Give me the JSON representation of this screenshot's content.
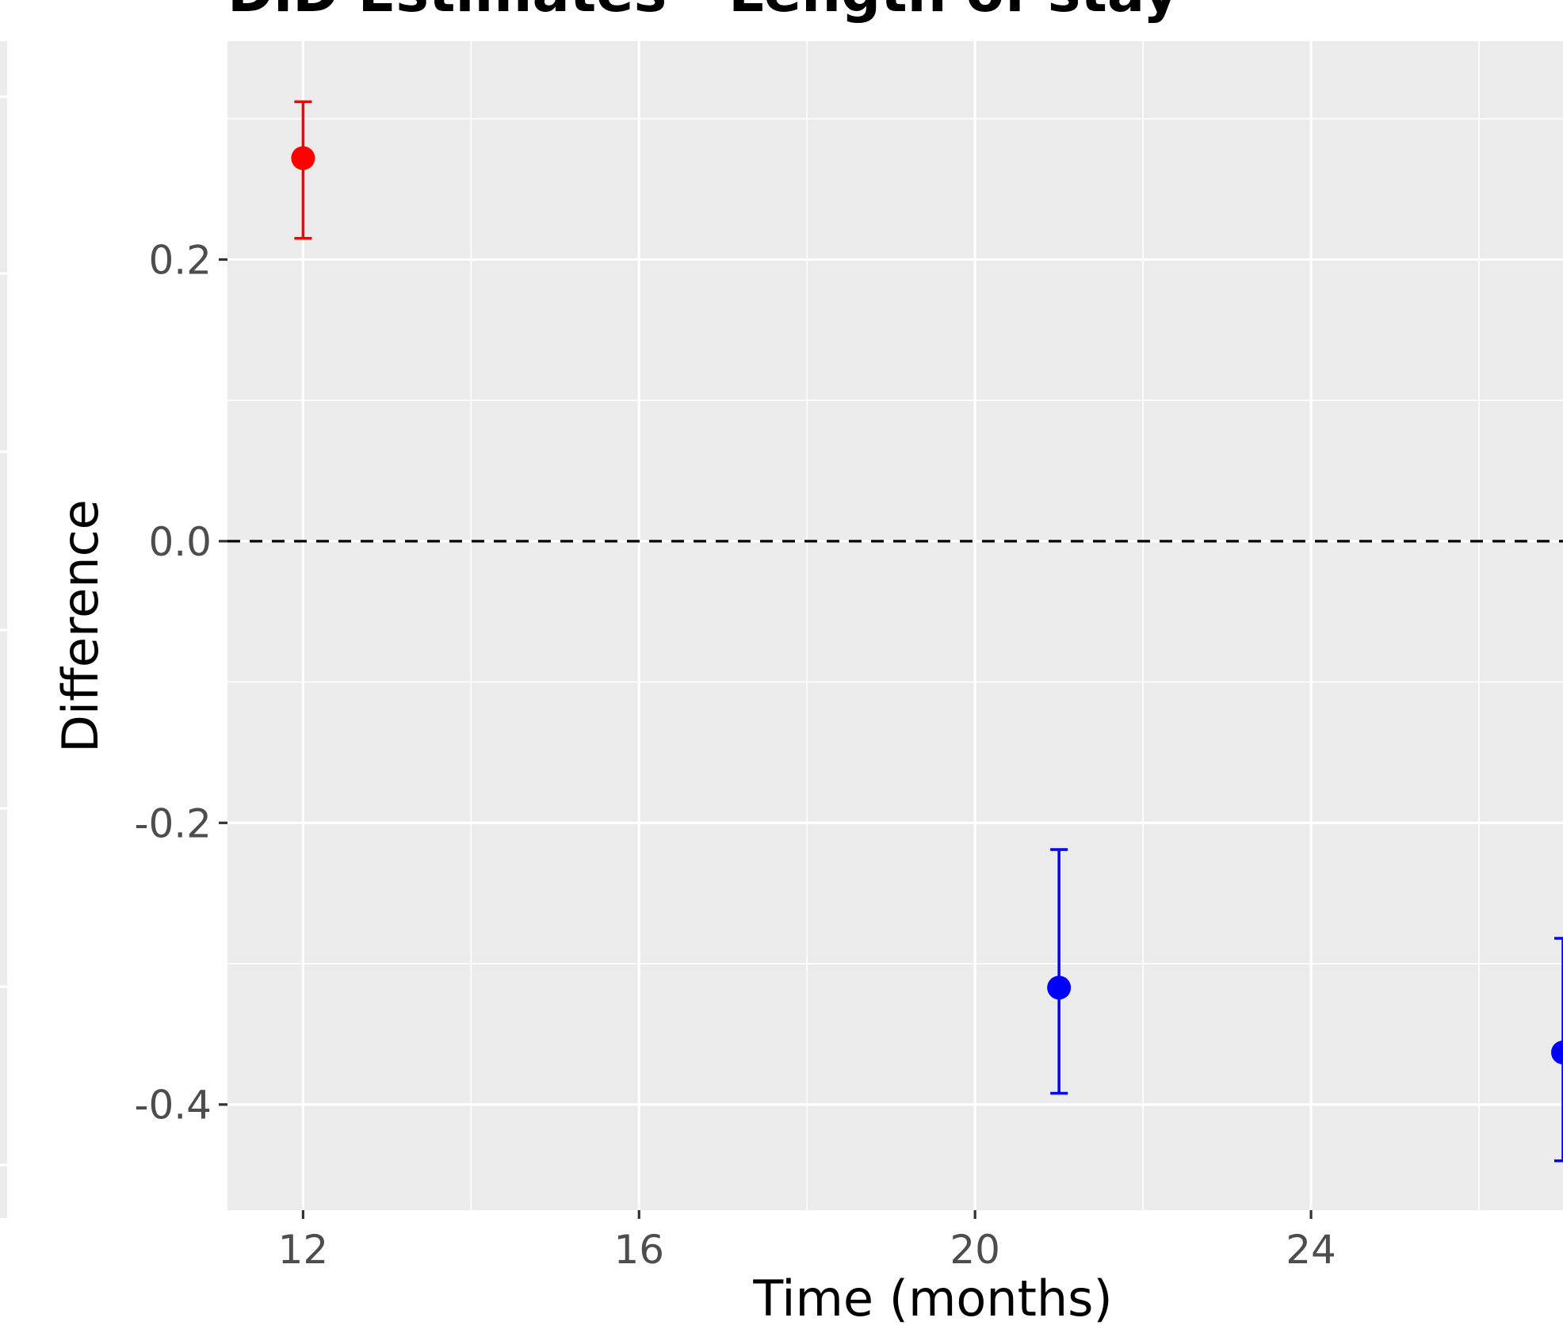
{
  "chart_data": {
    "type": "scatter",
    "title": "DiD Estimates - Length of stay",
    "xlabel": "Time (months)",
    "ylabel": "Difference",
    "xlim": [
      11.1,
      27.0
    ],
    "ylim": [
      -0.475,
      0.355
    ],
    "x_ticks": [
      {
        "value": 12,
        "label": "12"
      },
      {
        "value": 16,
        "label": "16"
      },
      {
        "value": 20,
        "label": "20"
      },
      {
        "value": 24,
        "label": "24"
      }
    ],
    "x_minor": [
      14,
      18,
      22,
      26
    ],
    "y_ticks": [
      {
        "value": 0.2,
        "label": "0.2"
      },
      {
        "value": 0.0,
        "label": "0.0"
      },
      {
        "value": -0.2,
        "label": "-0.2"
      },
      {
        "value": -0.4,
        "label": "-0.4"
      }
    ],
    "y_minor": [
      0.3,
      0.1,
      -0.1,
      -0.3
    ],
    "reference_line": {
      "y": 0.0,
      "style": "dashed",
      "color": "#000000"
    },
    "grid": true,
    "background": "#ebebeb",
    "points": [
      {
        "x": 12,
        "y": 0.272,
        "ymin": 0.215,
        "ymax": 0.312,
        "color": "#ff0000"
      },
      {
        "x": 21,
        "y": -0.317,
        "ymin": -0.392,
        "ymax": -0.219,
        "color": "#0000ff"
      },
      {
        "x": 27,
        "y": -0.363,
        "ymin": -0.44,
        "ymax": -0.282,
        "color": "#0000ff"
      }
    ]
  }
}
